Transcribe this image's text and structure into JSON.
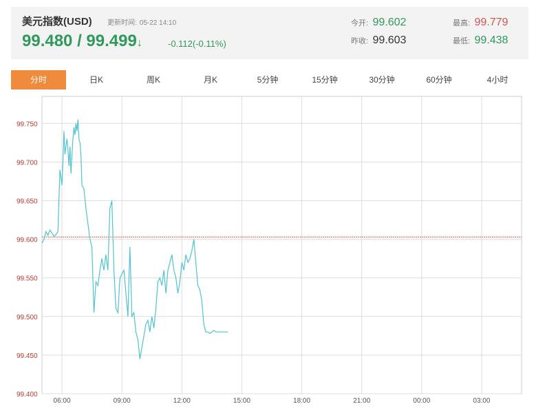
{
  "header": {
    "title": "美元指数(USD)",
    "updated_label": "更新时间:",
    "updated_time": "05-22 14:10",
    "price": "99.480 / 99.499",
    "arrow": "↓",
    "change": "-0.112(-0.11%)",
    "stats": {
      "open_label": "今开:",
      "open": "99.602",
      "prev_label": "昨收:",
      "prev": "99.603",
      "high_label": "最高:",
      "high": "99.779",
      "low_label": "最低:",
      "low": "99.438"
    }
  },
  "tabs": [
    {
      "label": "分时",
      "active": true
    },
    {
      "label": "日K"
    },
    {
      "label": "周K"
    },
    {
      "label": "月K"
    },
    {
      "label": "5分钟"
    },
    {
      "label": "15分钟"
    },
    {
      "label": "30分钟"
    },
    {
      "label": "60分钟"
    },
    {
      "label": "4小时"
    }
  ],
  "colors": {
    "line": "#4fc3d0",
    "reference": "#d9534f",
    "grid": "#dddddd",
    "ylabel": "#c0392b",
    "active_tab": "#f08a3c"
  },
  "chart_data": {
    "type": "line",
    "title": "",
    "xlabel": "",
    "ylabel": "",
    "x_ticks": [
      "06:00",
      "09:00",
      "12:00",
      "15:00",
      "18:00",
      "21:00",
      "00:00",
      "03:00"
    ],
    "y_ticks": [
      "99.750",
      "99.700",
      "99.650",
      "99.600",
      "99.550",
      "99.500",
      "99.450",
      "99.400"
    ],
    "ylim": [
      99.4,
      99.785
    ],
    "reference_line": 99.603,
    "x_unit": "hours after 05:00",
    "xlim": [
      0,
      24
    ],
    "series": [
      {
        "x": [
          0.0,
          0.1,
          0.2,
          0.3,
          0.4,
          0.5,
          0.6,
          0.7,
          0.8,
          0.9,
          1.0,
          1.05,
          1.1,
          1.15,
          1.2,
          1.25,
          1.3,
          1.35,
          1.4,
          1.45,
          1.5,
          1.55,
          1.6,
          1.65,
          1.7,
          1.75,
          1.8,
          1.85,
          1.9,
          1.95,
          2.0,
          2.1,
          2.2,
          2.3,
          2.4,
          2.5,
          2.6,
          2.7,
          2.8,
          2.9,
          3.0,
          3.1,
          3.2,
          3.3,
          3.4,
          3.5,
          3.6,
          3.7,
          3.8,
          3.9,
          4.0,
          4.1,
          4.2,
          4.3,
          4.4,
          4.5,
          4.6,
          4.7,
          4.8,
          4.9,
          5.0,
          5.1,
          5.2,
          5.3,
          5.4,
          5.5,
          5.6,
          5.7,
          5.8,
          5.9,
          6.0,
          6.1,
          6.2,
          6.3,
          6.4,
          6.5,
          6.6,
          6.7,
          6.8,
          6.9,
          7.0,
          7.1,
          7.2,
          7.3,
          7.4,
          7.5,
          7.6,
          7.7,
          7.8,
          7.9,
          8.0,
          8.1,
          8.2,
          8.3,
          8.4,
          8.5,
          8.6,
          8.7,
          8.8,
          8.9,
          9.0,
          9.1,
          9.2,
          9.3
        ],
        "values": [
          99.595,
          99.6,
          99.61,
          99.605,
          99.612,
          99.608,
          99.604,
          99.606,
          99.61,
          99.69,
          99.67,
          99.7,
          99.74,
          99.71,
          99.72,
          99.73,
          99.715,
          99.695,
          99.72,
          99.685,
          99.71,
          99.73,
          99.745,
          99.735,
          99.75,
          99.74,
          99.755,
          99.73,
          99.725,
          99.71,
          99.67,
          99.665,
          99.64,
          99.62,
          99.6,
          99.59,
          99.505,
          99.545,
          99.54,
          99.56,
          99.575,
          99.56,
          99.58,
          99.56,
          99.64,
          99.65,
          99.56,
          99.51,
          99.505,
          99.55,
          99.555,
          99.56,
          99.53,
          99.5,
          99.59,
          99.5,
          99.505,
          99.48,
          99.47,
          99.445,
          99.46,
          99.475,
          99.49,
          99.495,
          99.48,
          99.5,
          99.485,
          99.51,
          99.545,
          99.55,
          99.54,
          99.56,
          99.53,
          99.56,
          99.57,
          99.58,
          99.56,
          99.55,
          99.53,
          99.545,
          99.57,
          99.56,
          99.58,
          99.57,
          99.575,
          99.585,
          99.6,
          99.57,
          99.54,
          99.535,
          99.52,
          99.49,
          99.48,
          99.48,
          99.478,
          99.48,
          99.482,
          99.48,
          99.48,
          99.48,
          99.48,
          99.48,
          99.48,
          99.48
        ]
      }
    ]
  }
}
